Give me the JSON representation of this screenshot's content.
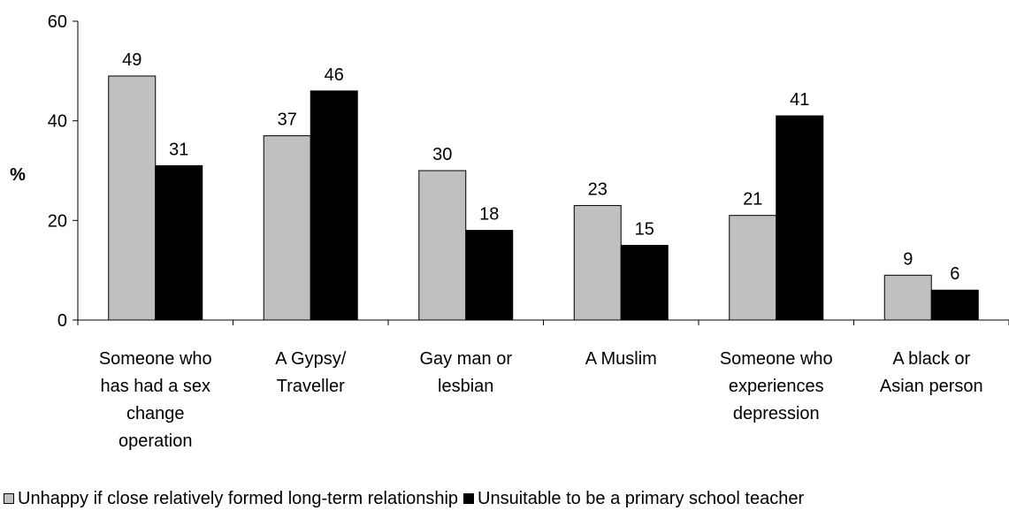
{
  "chart_data": {
    "type": "bar",
    "ylabel": "%",
    "ylim": [
      0,
      60
    ],
    "yticks": [
      "0",
      "20",
      "40",
      "60"
    ],
    "categories": [
      [
        "Someone who",
        "has had a sex",
        "change",
        "operation"
      ],
      [
        "A Gypsy/",
        "Traveller"
      ],
      [
        "Gay man or",
        "lesbian"
      ],
      [
        "A Muslim"
      ],
      [
        "Someone who",
        "experiences",
        "depression"
      ],
      [
        "A black or",
        "Asian person"
      ]
    ],
    "series": [
      {
        "name": "Unhappy if close relatively formed long-term relationship",
        "color": "#c0c0c0",
        "values": [
          49,
          37,
          30,
          23,
          21,
          9
        ]
      },
      {
        "name": "Unsuitable to be a primary school teacher",
        "color": "#000000",
        "values": [
          31,
          46,
          18,
          15,
          41,
          6
        ]
      }
    ],
    "legend_position": "bottom",
    "grid": false
  }
}
